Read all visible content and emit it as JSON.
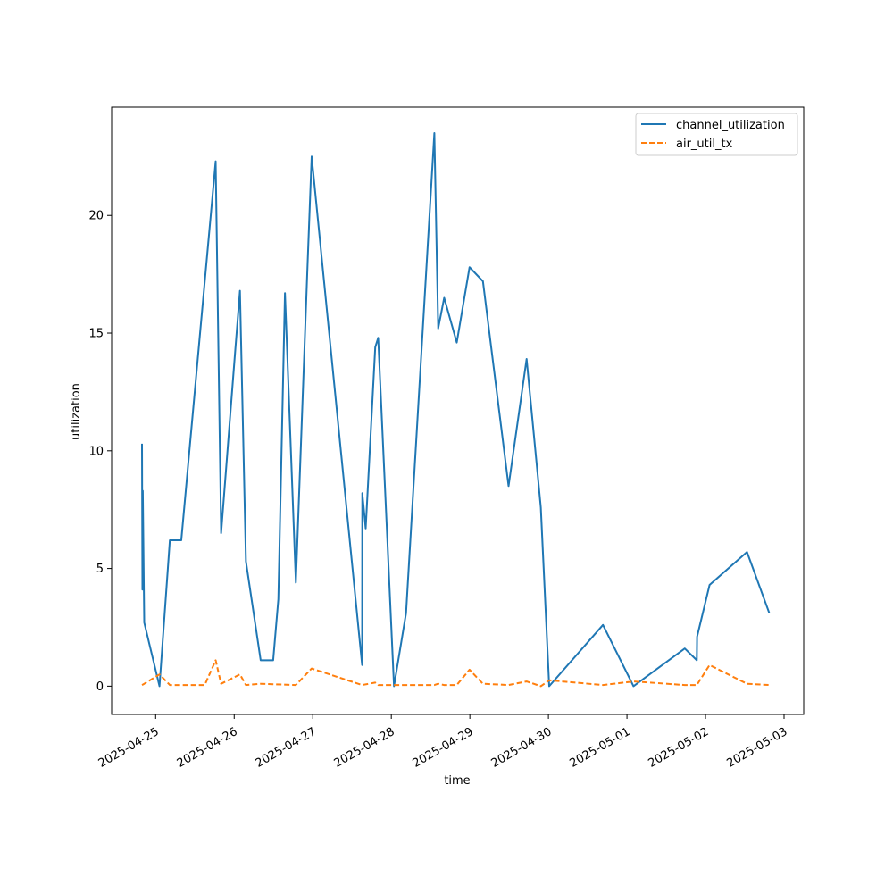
{
  "chart_data": {
    "type": "line",
    "title": "",
    "xlabel": "time",
    "ylabel": "utilization",
    "x_type": "date",
    "xlim": [
      "2025-04-24 10:33",
      "2025-05-03 06:00"
    ],
    "ylim": [
      -1.2,
      24.6
    ],
    "x_ticks": [
      "2025-04-25",
      "2025-04-26",
      "2025-04-27",
      "2025-04-28",
      "2025-04-29",
      "2025-04-30",
      "2025-05-01",
      "2025-05-02",
      "2025-05-03"
    ],
    "y_ticks": [
      0,
      5,
      10,
      15,
      20
    ],
    "grid": false,
    "legend_position": "top-right",
    "series": [
      {
        "name": "channel_utilization",
        "color": "#1f77b4",
        "dash": "solid",
        "points": [
          [
            "2025-04-24 19:50",
            10.3
          ],
          [
            "2025-04-24 19:58",
            4.1
          ],
          [
            "2025-04-24 20:05",
            8.3
          ],
          [
            "2025-04-24 20:30",
            2.7
          ],
          [
            "2025-04-25 01:10",
            0.0
          ],
          [
            "2025-04-25 04:20",
            6.2
          ],
          [
            "2025-04-25 07:50",
            6.2
          ],
          [
            "2025-04-25 18:20",
            22.3
          ],
          [
            "2025-04-25 20:00",
            6.5
          ],
          [
            "2025-04-26 00:20",
            14.3
          ],
          [
            "2025-04-26 01:45",
            16.8
          ],
          [
            "2025-04-26 03:35",
            5.3
          ],
          [
            "2025-04-26 08:05",
            1.1
          ],
          [
            "2025-04-26 11:55",
            1.1
          ],
          [
            "2025-04-26 13:30",
            3.7
          ],
          [
            "2025-04-26 15:30",
            16.7
          ],
          [
            "2025-04-26 18:50",
            4.4
          ],
          [
            "2025-04-26 22:20",
            17.6
          ],
          [
            "2025-04-26 23:40",
            22.5
          ],
          [
            "2025-04-27 15:05",
            0.9
          ],
          [
            "2025-04-27 15:08",
            8.2
          ],
          [
            "2025-04-27 16:10",
            6.7
          ],
          [
            "2025-04-27 19:05",
            14.4
          ],
          [
            "2025-04-27 20:00",
            14.8
          ],
          [
            "2025-04-28 00:50",
            0.0
          ],
          [
            "2025-04-28 04:30",
            3.1
          ],
          [
            "2025-04-28 13:10",
            23.5
          ],
          [
            "2025-04-28 14:20",
            15.2
          ],
          [
            "2025-04-28 16:10",
            16.5
          ],
          [
            "2025-04-28 20:00",
            14.6
          ],
          [
            "2025-04-28 23:55",
            17.8
          ],
          [
            "2025-04-29 04:00",
            17.2
          ],
          [
            "2025-04-29 11:50",
            8.5
          ],
          [
            "2025-04-29 17:20",
            13.9
          ],
          [
            "2025-04-29 21:40",
            7.6
          ],
          [
            "2025-04-30 00:15",
            0.0
          ],
          [
            "2025-04-30 16:40",
            2.6
          ],
          [
            "2025-05-01 02:00",
            0.0
          ],
          [
            "2025-05-01 17:40",
            1.6
          ],
          [
            "2025-05-01 21:20",
            1.1
          ],
          [
            "2025-05-01 21:25",
            2.1
          ],
          [
            "2025-05-02 01:15",
            4.3
          ],
          [
            "2025-05-02 12:40",
            5.7
          ],
          [
            "2025-05-02 19:30",
            3.1
          ]
        ]
      },
      {
        "name": "air_util_tx",
        "color": "#ff7f0e",
        "dash": "dashed",
        "points": [
          [
            "2025-04-24 19:50",
            0.05
          ],
          [
            "2025-04-24 20:30",
            0.1
          ],
          [
            "2025-04-25 01:10",
            0.5
          ],
          [
            "2025-04-25 04:20",
            0.05
          ],
          [
            "2025-04-25 15:00",
            0.05
          ],
          [
            "2025-04-25 18:20",
            1.1
          ],
          [
            "2025-04-25 20:00",
            0.1
          ],
          [
            "2025-04-26 01:45",
            0.5
          ],
          [
            "2025-04-26 03:35",
            0.05
          ],
          [
            "2025-04-26 08:05",
            0.1
          ],
          [
            "2025-04-26 18:50",
            0.05
          ],
          [
            "2025-04-26 23:40",
            0.75
          ],
          [
            "2025-04-27 15:05",
            0.05
          ],
          [
            "2025-04-27 19:05",
            0.15
          ],
          [
            "2025-04-27 20:00",
            0.05
          ],
          [
            "2025-04-28 13:10",
            0.05
          ],
          [
            "2025-04-28 14:20",
            0.1
          ],
          [
            "2025-04-28 16:10",
            0.05
          ],
          [
            "2025-04-28 20:00",
            0.05
          ],
          [
            "2025-04-28 23:55",
            0.7
          ],
          [
            "2025-04-29 04:00",
            0.1
          ],
          [
            "2025-04-29 11:50",
            0.05
          ],
          [
            "2025-04-29 17:20",
            0.2
          ],
          [
            "2025-04-29 21:40",
            0.0
          ],
          [
            "2025-04-30 00:15",
            0.25
          ],
          [
            "2025-04-30 16:40",
            0.05
          ],
          [
            "2025-05-01 02:00",
            0.2
          ],
          [
            "2025-05-01 17:40",
            0.05
          ],
          [
            "2025-05-01 21:20",
            0.05
          ],
          [
            "2025-05-02 01:15",
            0.9
          ],
          [
            "2025-05-02 12:40",
            0.1
          ],
          [
            "2025-05-02 19:30",
            0.05
          ]
        ]
      }
    ]
  }
}
